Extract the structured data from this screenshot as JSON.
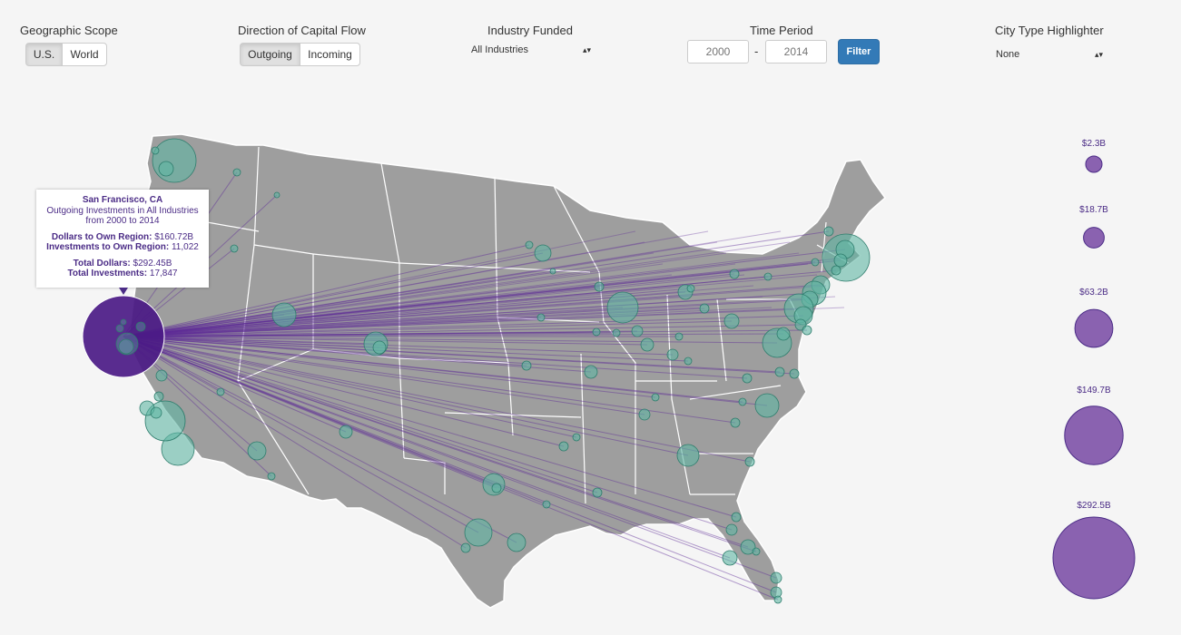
{
  "controls": {
    "geographic_scope": {
      "label": "Geographic Scope",
      "options": [
        "U.S.",
        "World"
      ],
      "selected": "U.S."
    },
    "direction": {
      "label": "Direction of Capital Flow",
      "options": [
        "Outgoing",
        "Incoming"
      ],
      "selected": "Outgoing"
    },
    "industry": {
      "label": "Industry Funded",
      "value": "All Industries"
    },
    "time_period": {
      "label": "Time Period",
      "start": "2000",
      "end": "2014",
      "separator": "-",
      "filter_label": "Filter"
    },
    "city_type": {
      "label": "City Type Highlighter",
      "value": "None"
    }
  },
  "tooltip": {
    "city": "San Francisco, CA",
    "line1": "Outgoing Investments in All Industries",
    "line2": "from 2000 to 2014",
    "dollars_own_label": "Dollars to Own Region:",
    "dollars_own_value": "$160.72B",
    "investments_own_label": "Investments to Own Region:",
    "investments_own_value": "11,022",
    "total_dollars_label": "Total Dollars:",
    "total_dollars_value": "$292.45B",
    "total_investments_label": "Total Investments:",
    "total_investments_value": "17,847"
  },
  "legend": [
    {
      "label": "$2.3B",
      "value": 2.3
    },
    {
      "label": "$18.7B",
      "value": 18.7
    },
    {
      "label": "$63.2B",
      "value": 63.2
    },
    {
      "label": "$149.7B",
      "value": 149.7
    },
    {
      "label": "$292.5B",
      "value": 292.5
    }
  ],
  "colors": {
    "land": "#9e9e9e",
    "border": "#ffffff",
    "flow": "#5e2b97",
    "source": "#4b1a85",
    "city_fill": "#5fb6a3",
    "city_stroke": "#2f7d6d",
    "legend_fill": "#8a62b0",
    "legend_stroke": "#4b2c86"
  }
}
